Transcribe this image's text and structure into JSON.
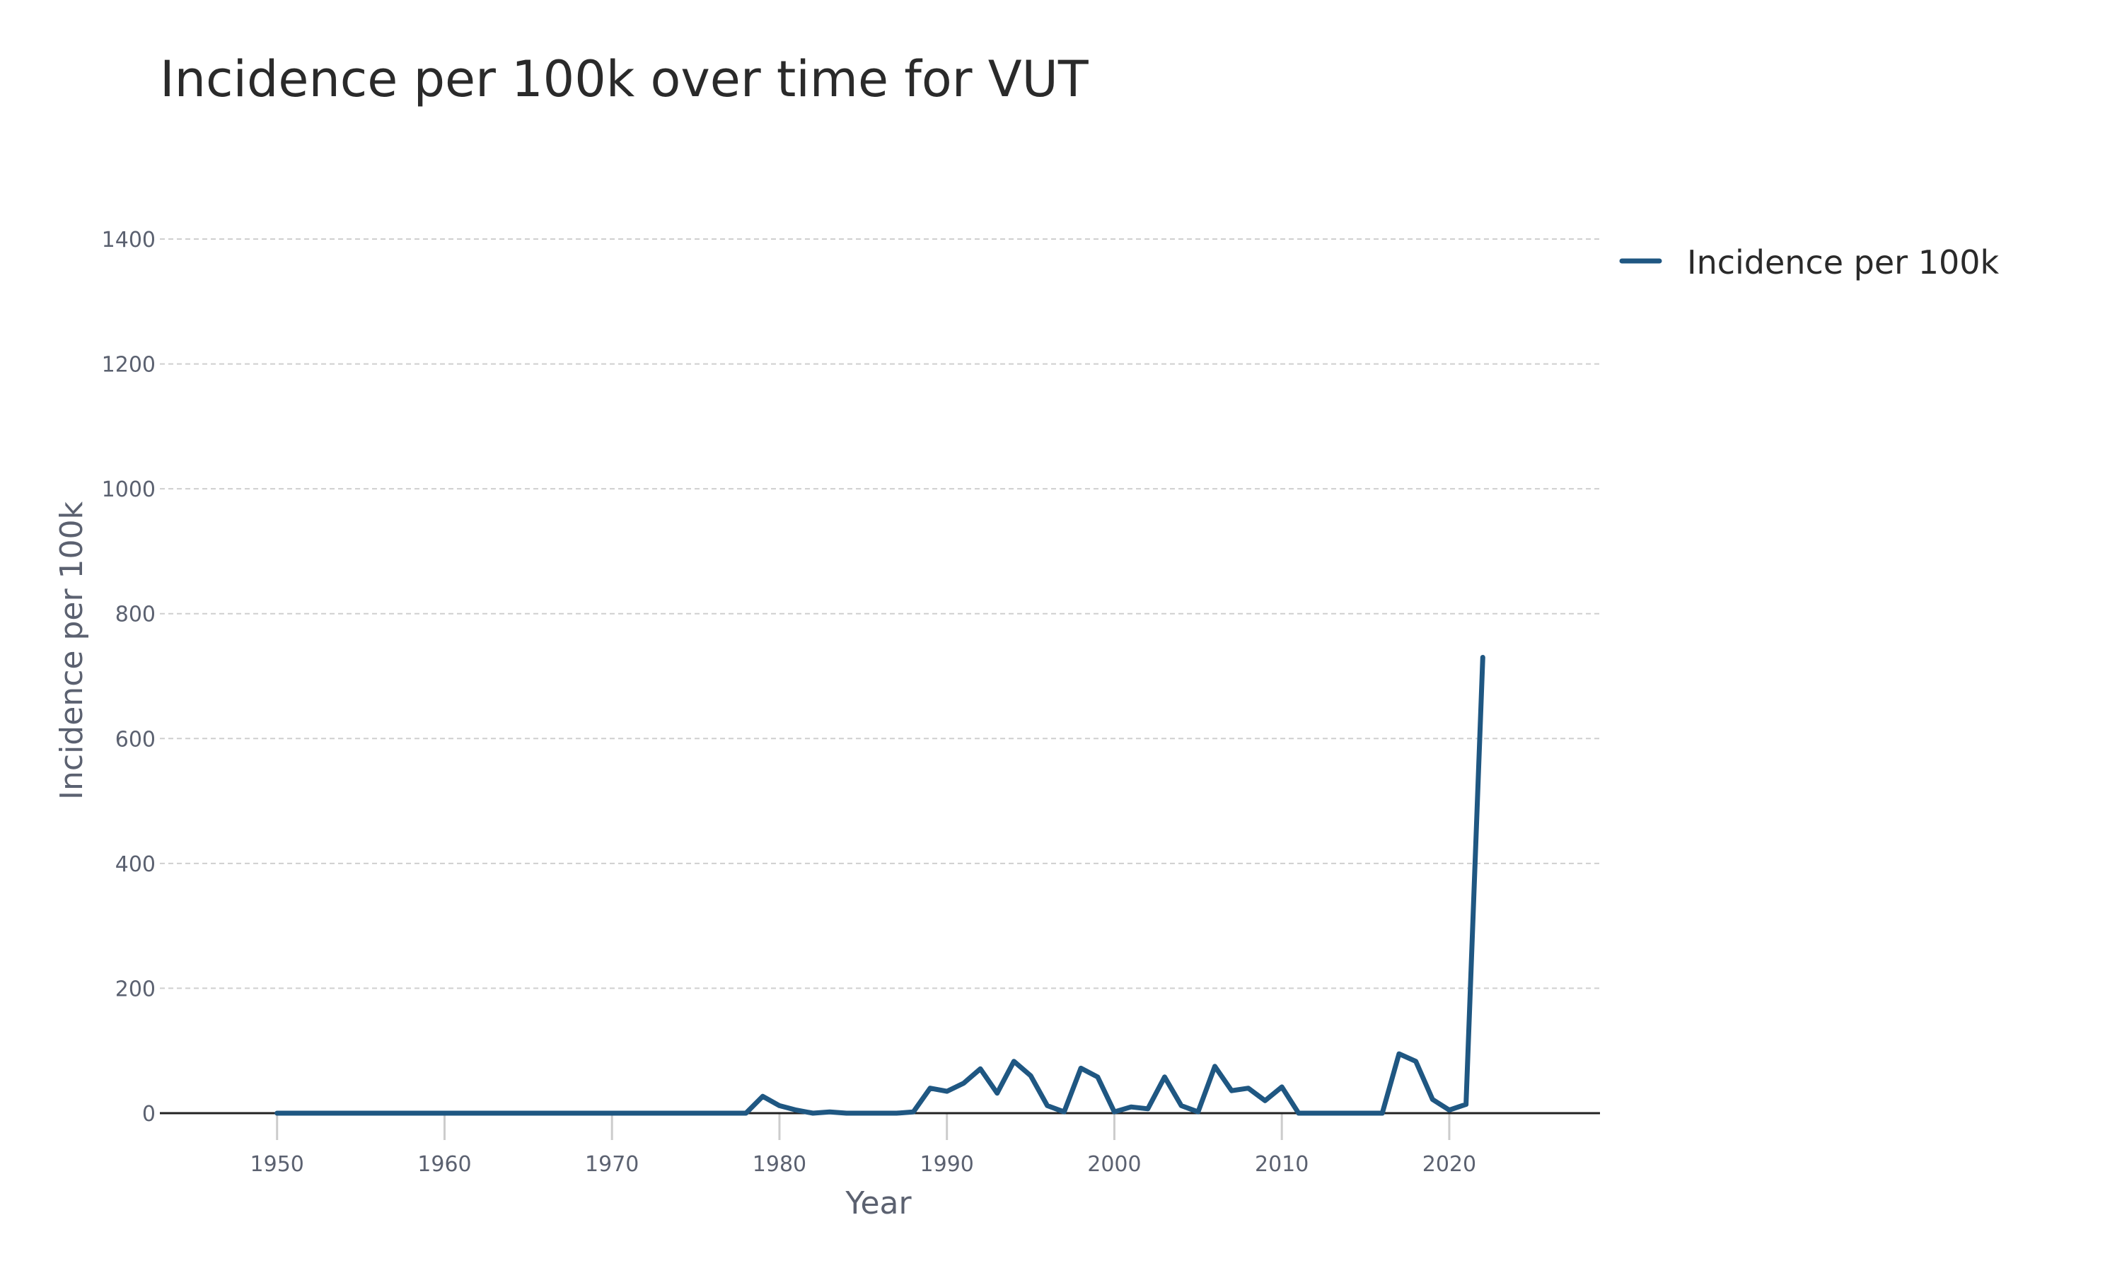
{
  "chart_data": {
    "type": "line",
    "title": "Incidence per 100k over time for VUT",
    "xlabel": "Year",
    "ylabel": "Incidence per 100k",
    "xlim": [
      1943,
      2029
    ],
    "ylim": [
      0,
      1400
    ],
    "x_ticks": [
      1950,
      1960,
      1970,
      1980,
      1990,
      2000,
      2010,
      2020
    ],
    "y_ticks": [
      0,
      200,
      400,
      600,
      800,
      1000,
      1200,
      1400
    ],
    "grid": true,
    "legend_position": "top-right",
    "series": [
      {
        "name": "Incidence per 100k",
        "color": "#1f5782",
        "x": [
          1950,
          1951,
          1952,
          1953,
          1954,
          1955,
          1956,
          1957,
          1958,
          1959,
          1960,
          1961,
          1962,
          1963,
          1964,
          1965,
          1966,
          1967,
          1968,
          1969,
          1970,
          1971,
          1972,
          1973,
          1974,
          1975,
          1976,
          1977,
          1978,
          1979,
          1980,
          1981,
          1982,
          1983,
          1984,
          1985,
          1986,
          1987,
          1988,
          1989,
          1990,
          1991,
          1992,
          1993,
          1994,
          1995,
          1996,
          1997,
          1998,
          1999,
          2000,
          2001,
          2002,
          2003,
          2004,
          2005,
          2006,
          2007,
          2008,
          2009,
          2010,
          2011,
          2012,
          2013,
          2014,
          2015,
          2016,
          2017,
          2018,
          2019,
          2020,
          2021,
          2022
        ],
        "y": [
          0,
          0,
          0,
          0,
          0,
          0,
          0,
          0,
          0,
          0,
          0,
          0,
          0,
          0,
          0,
          0,
          0,
          0,
          0,
          0,
          0,
          0,
          0,
          0,
          0,
          0,
          0,
          0,
          0,
          27,
          12,
          5,
          0,
          2,
          0,
          0,
          0,
          0,
          2,
          40,
          35,
          48,
          71,
          32,
          83,
          60,
          12,
          2,
          72,
          58,
          2,
          10,
          7,
          58,
          12,
          2,
          75,
          36,
          40,
          20,
          42,
          0,
          0,
          0,
          0,
          0,
          0,
          95,
          83,
          22,
          5,
          14,
          730
        ]
      }
    ]
  }
}
